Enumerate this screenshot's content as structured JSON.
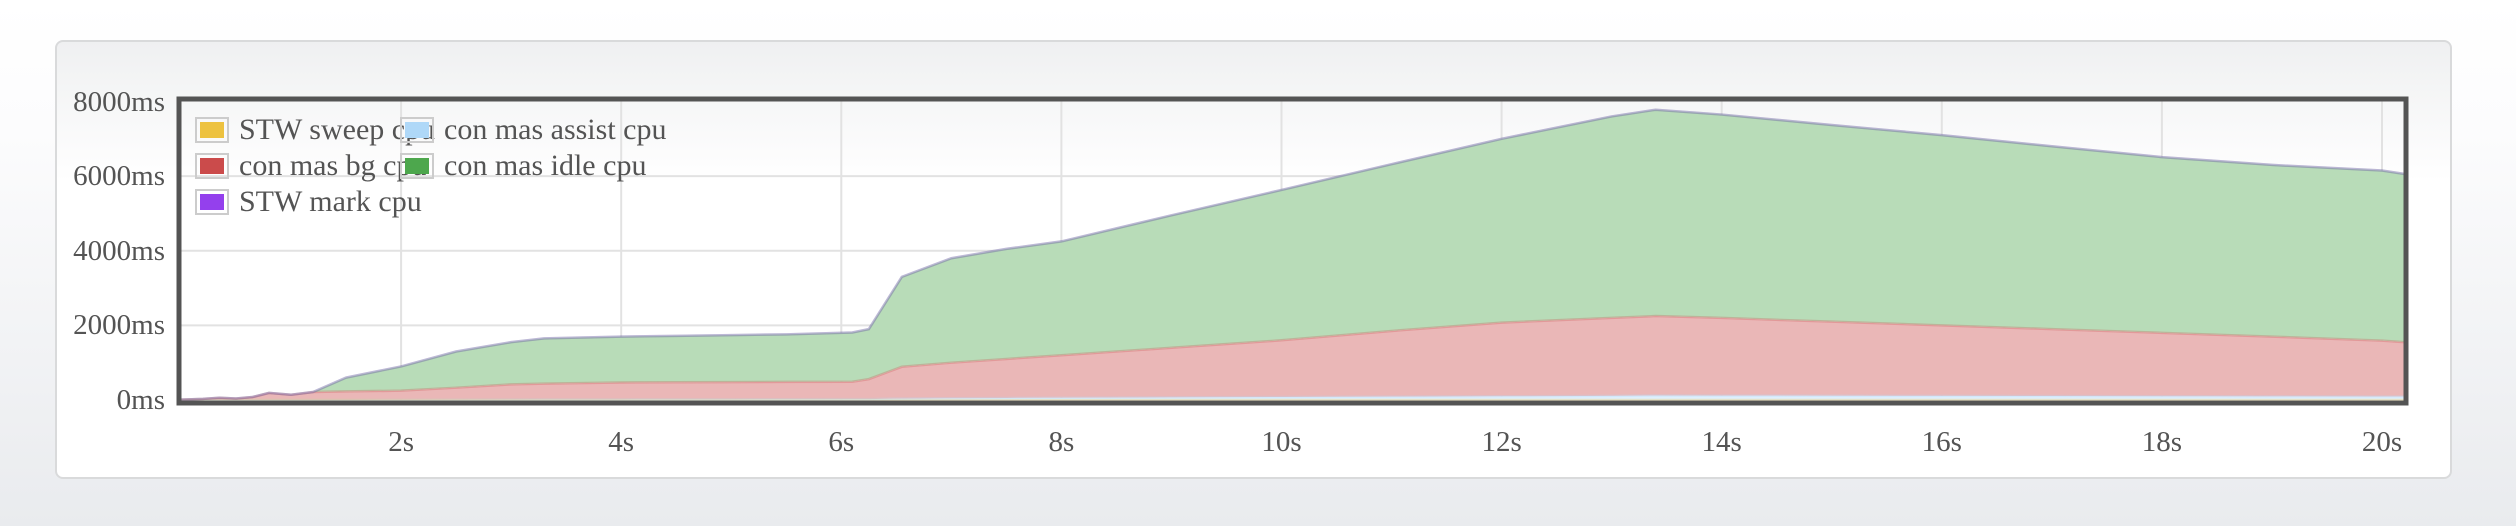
{
  "panel": {
    "type": "flot-style stacked area chart panel"
  },
  "colors": {
    "plot_border": "#545454",
    "grid_line": "#e2e2e2",
    "tick_text": "#545454",
    "panel_border": "#d9dadb",
    "page_bg_bottom": "#e9ebee",
    "legend_swatch_border": "#cccccc"
  },
  "chart_data": {
    "type": "area",
    "stacked": true,
    "title": "",
    "xlabel": "",
    "ylabel": "",
    "x_unit": "s",
    "y_unit": "ms",
    "xlim": [
      0,
      20.2
    ],
    "ylim": [
      0,
      8000
    ],
    "grid": true,
    "legend_position": "top-left, 2 columns, row-major order",
    "x_ticks": [
      {
        "value": 2,
        "label": "2s"
      },
      {
        "value": 4,
        "label": "4s"
      },
      {
        "value": 6,
        "label": "6s"
      },
      {
        "value": 8,
        "label": "8s"
      },
      {
        "value": 10,
        "label": "10s"
      },
      {
        "value": 12,
        "label": "12s"
      },
      {
        "value": 14,
        "label": "14s"
      },
      {
        "value": 16,
        "label": "16s"
      },
      {
        "value": 18,
        "label": "18s"
      },
      {
        "value": 20,
        "label": "20s"
      }
    ],
    "y_ticks": [
      {
        "value": 0,
        "label": "0ms"
      },
      {
        "value": 2000,
        "label": "2000ms"
      },
      {
        "value": 4000,
        "label": "4000ms"
      },
      {
        "value": 6000,
        "label": "6000ms"
      },
      {
        "value": 8000,
        "label": "8000ms"
      }
    ],
    "x": [
      0,
      0.2,
      0.35,
      0.5,
      0.65,
      0.8,
      1,
      1.2,
      1.5,
      2,
      2.5,
      3,
      3.3,
      4,
      4.5,
      5,
      5.5,
      6.1,
      6.25,
      6.55,
      7,
      7.5,
      8,
      9,
      10,
      11,
      12,
      13,
      13.4,
      14,
      15,
      16,
      17,
      18,
      19,
      20,
      20.2
    ],
    "series": [
      {
        "name": "STW sweep cpu",
        "color": "#edc240",
        "fill": "#f8e7b3",
        "values": [
          0,
          0,
          0,
          0,
          0,
          0,
          0,
          0,
          0,
          0,
          0,
          0,
          0,
          0,
          0,
          0,
          0,
          0,
          0,
          0,
          0,
          0,
          0,
          0,
          0,
          0,
          0,
          0,
          0,
          0,
          0,
          0,
          0,
          0,
          0,
          0,
          0
        ]
      },
      {
        "name": "con mas assist cpu",
        "color": "#afd8f8",
        "fill": "#dfeffc",
        "values": [
          0,
          0,
          0,
          0,
          0,
          0,
          0,
          0,
          0,
          5,
          8,
          10,
          12,
          15,
          16,
          18,
          20,
          22,
          25,
          38,
          48,
          55,
          60,
          70,
          80,
          90,
          100,
          110,
          120,
          118,
          114,
          110,
          106,
          102,
          98,
          95,
          93
        ]
      },
      {
        "name": "con mas bg cpu",
        "color": "#cb4b4b",
        "fill": "#eab7b7",
        "values": [
          10,
          30,
          60,
          40,
          80,
          190,
          140,
          215,
          230,
          245,
          322,
          410,
          428,
          455,
          459,
          462,
          465,
          468,
          535,
          852,
          952,
          1045,
          1140,
          1330,
          1520,
          1760,
          1975,
          2090,
          2130,
          2082,
          1986,
          1890,
          1794,
          1698,
          1602,
          1495,
          1457
        ]
      },
      {
        "name": "con mas idle cpu",
        "color": "#4da74d",
        "fill": "#b8dcb8",
        "values": [
          0,
          0,
          0,
          0,
          0,
          0,
          0,
          0,
          370,
          650,
          970,
          1130,
          1210,
          1230,
          1245,
          1260,
          1275,
          1320,
          1340,
          2410,
          2800,
          2950,
          3050,
          3550,
          4030,
          4470,
          4925,
          5400,
          5530,
          5450,
          5270,
          5100,
          4900,
          4710,
          4600,
          4560,
          4510
        ]
      },
      {
        "name": "STW mark cpu",
        "color": "#9440ed",
        "fill": "#d4b3f8",
        "values": [
          0,
          0,
          0,
          0,
          0,
          0,
          0,
          0,
          0,
          0,
          0,
          0,
          0,
          0,
          0,
          0,
          0,
          0,
          0,
          0,
          0,
          0,
          0,
          0,
          0,
          0,
          0,
          0,
          0,
          0,
          0,
          0,
          0,
          0,
          0,
          0,
          0
        ]
      }
    ],
    "notes": "Stacked totals peak ~7780ms at ~13.4s; plateau ~1700-1900ms between 3.3s and 6.1s; sharp jump at ~6.3-6.6s to ~3300ms; declines to ~6060ms at right edge."
  }
}
